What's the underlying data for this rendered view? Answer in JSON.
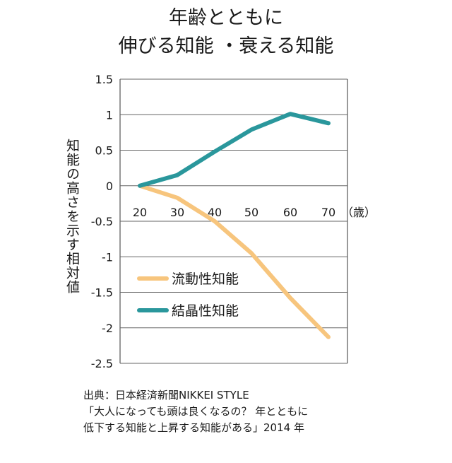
{
  "header": {
    "title_line1": "年齢とともに",
    "title_line2": "伸びる知能 ・衰える知能"
  },
  "chart_data": {
    "type": "line",
    "ylabel": "知能の高さを示す相対値",
    "x_unit": "（歳）",
    "x": [
      20,
      30,
      40,
      50,
      60,
      70
    ],
    "x_tick_labels": [
      "20",
      "30",
      "40",
      "50",
      "60",
      "70"
    ],
    "ylim": [
      -2.5,
      1.5
    ],
    "y_ticks": [
      1.5,
      1,
      0.5,
      0,
      -0.5,
      -1,
      -1.5,
      -2,
      -2.5
    ],
    "y_tick_labels": [
      "1.5",
      "1",
      "0.5",
      "0",
      "-0.5",
      "-1",
      "-1.5",
      "-2",
      "-2.5"
    ],
    "grid": true,
    "legend_position": "lower-left",
    "series": [
      {
        "name": "流動性知能",
        "color": "#f7c57d",
        "values": [
          0,
          -0.17,
          -0.5,
          -0.95,
          -1.58,
          -2.13
        ]
      },
      {
        "name": "結晶性知能",
        "color": "#2a979c",
        "values": [
          0,
          0.15,
          0.48,
          0.79,
          1.01,
          0.88
        ]
      }
    ]
  },
  "source": {
    "line1": "出典：日本経済新聞NIKKEI STYLE",
    "line2": "「大人になっても頭は良くなるの？ 年とともに",
    "line3": "低下する知能と上昇する知能がある」2014 年"
  }
}
